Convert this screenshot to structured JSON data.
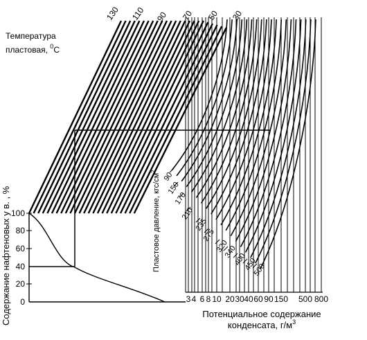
{
  "temperature_title": {
    "line1": "Температура",
    "line2_prefix": "пластовая, ",
    "line2_sup": "0",
    "line2_suffix": "С"
  },
  "temperature_labels": [
    "130",
    "110",
    "90",
    "70",
    "50",
    "30"
  ],
  "y_axis": {
    "label": "Содержание нафтеновых у в. , %",
    "ticks": [
      "100",
      "80",
      "60",
      "40",
      "20",
      "0"
    ]
  },
  "x_axis": {
    "line1": "Потенциальное содержание",
    "line2": "конденсата, г/м",
    "line2_sup": "3",
    "scale_labels": [
      "3",
      "4",
      "6",
      "8",
      "10",
      "20",
      "30",
      "40",
      "60",
      "90",
      "150",
      "500",
      "800"
    ]
  },
  "pressure_axis": {
    "label": "Пластовое давление, кгс/см",
    "label_sup": "2",
    "labels": [
      "90",
      "150",
      "170",
      "210",
      "235",
      "275",
      "320",
      "340",
      "400",
      "450",
      "500"
    ]
  },
  "example_path": {
    "naphthene_percent": 40
  },
  "colors": {
    "ink": "#000000",
    "background": "#ffffff"
  }
}
